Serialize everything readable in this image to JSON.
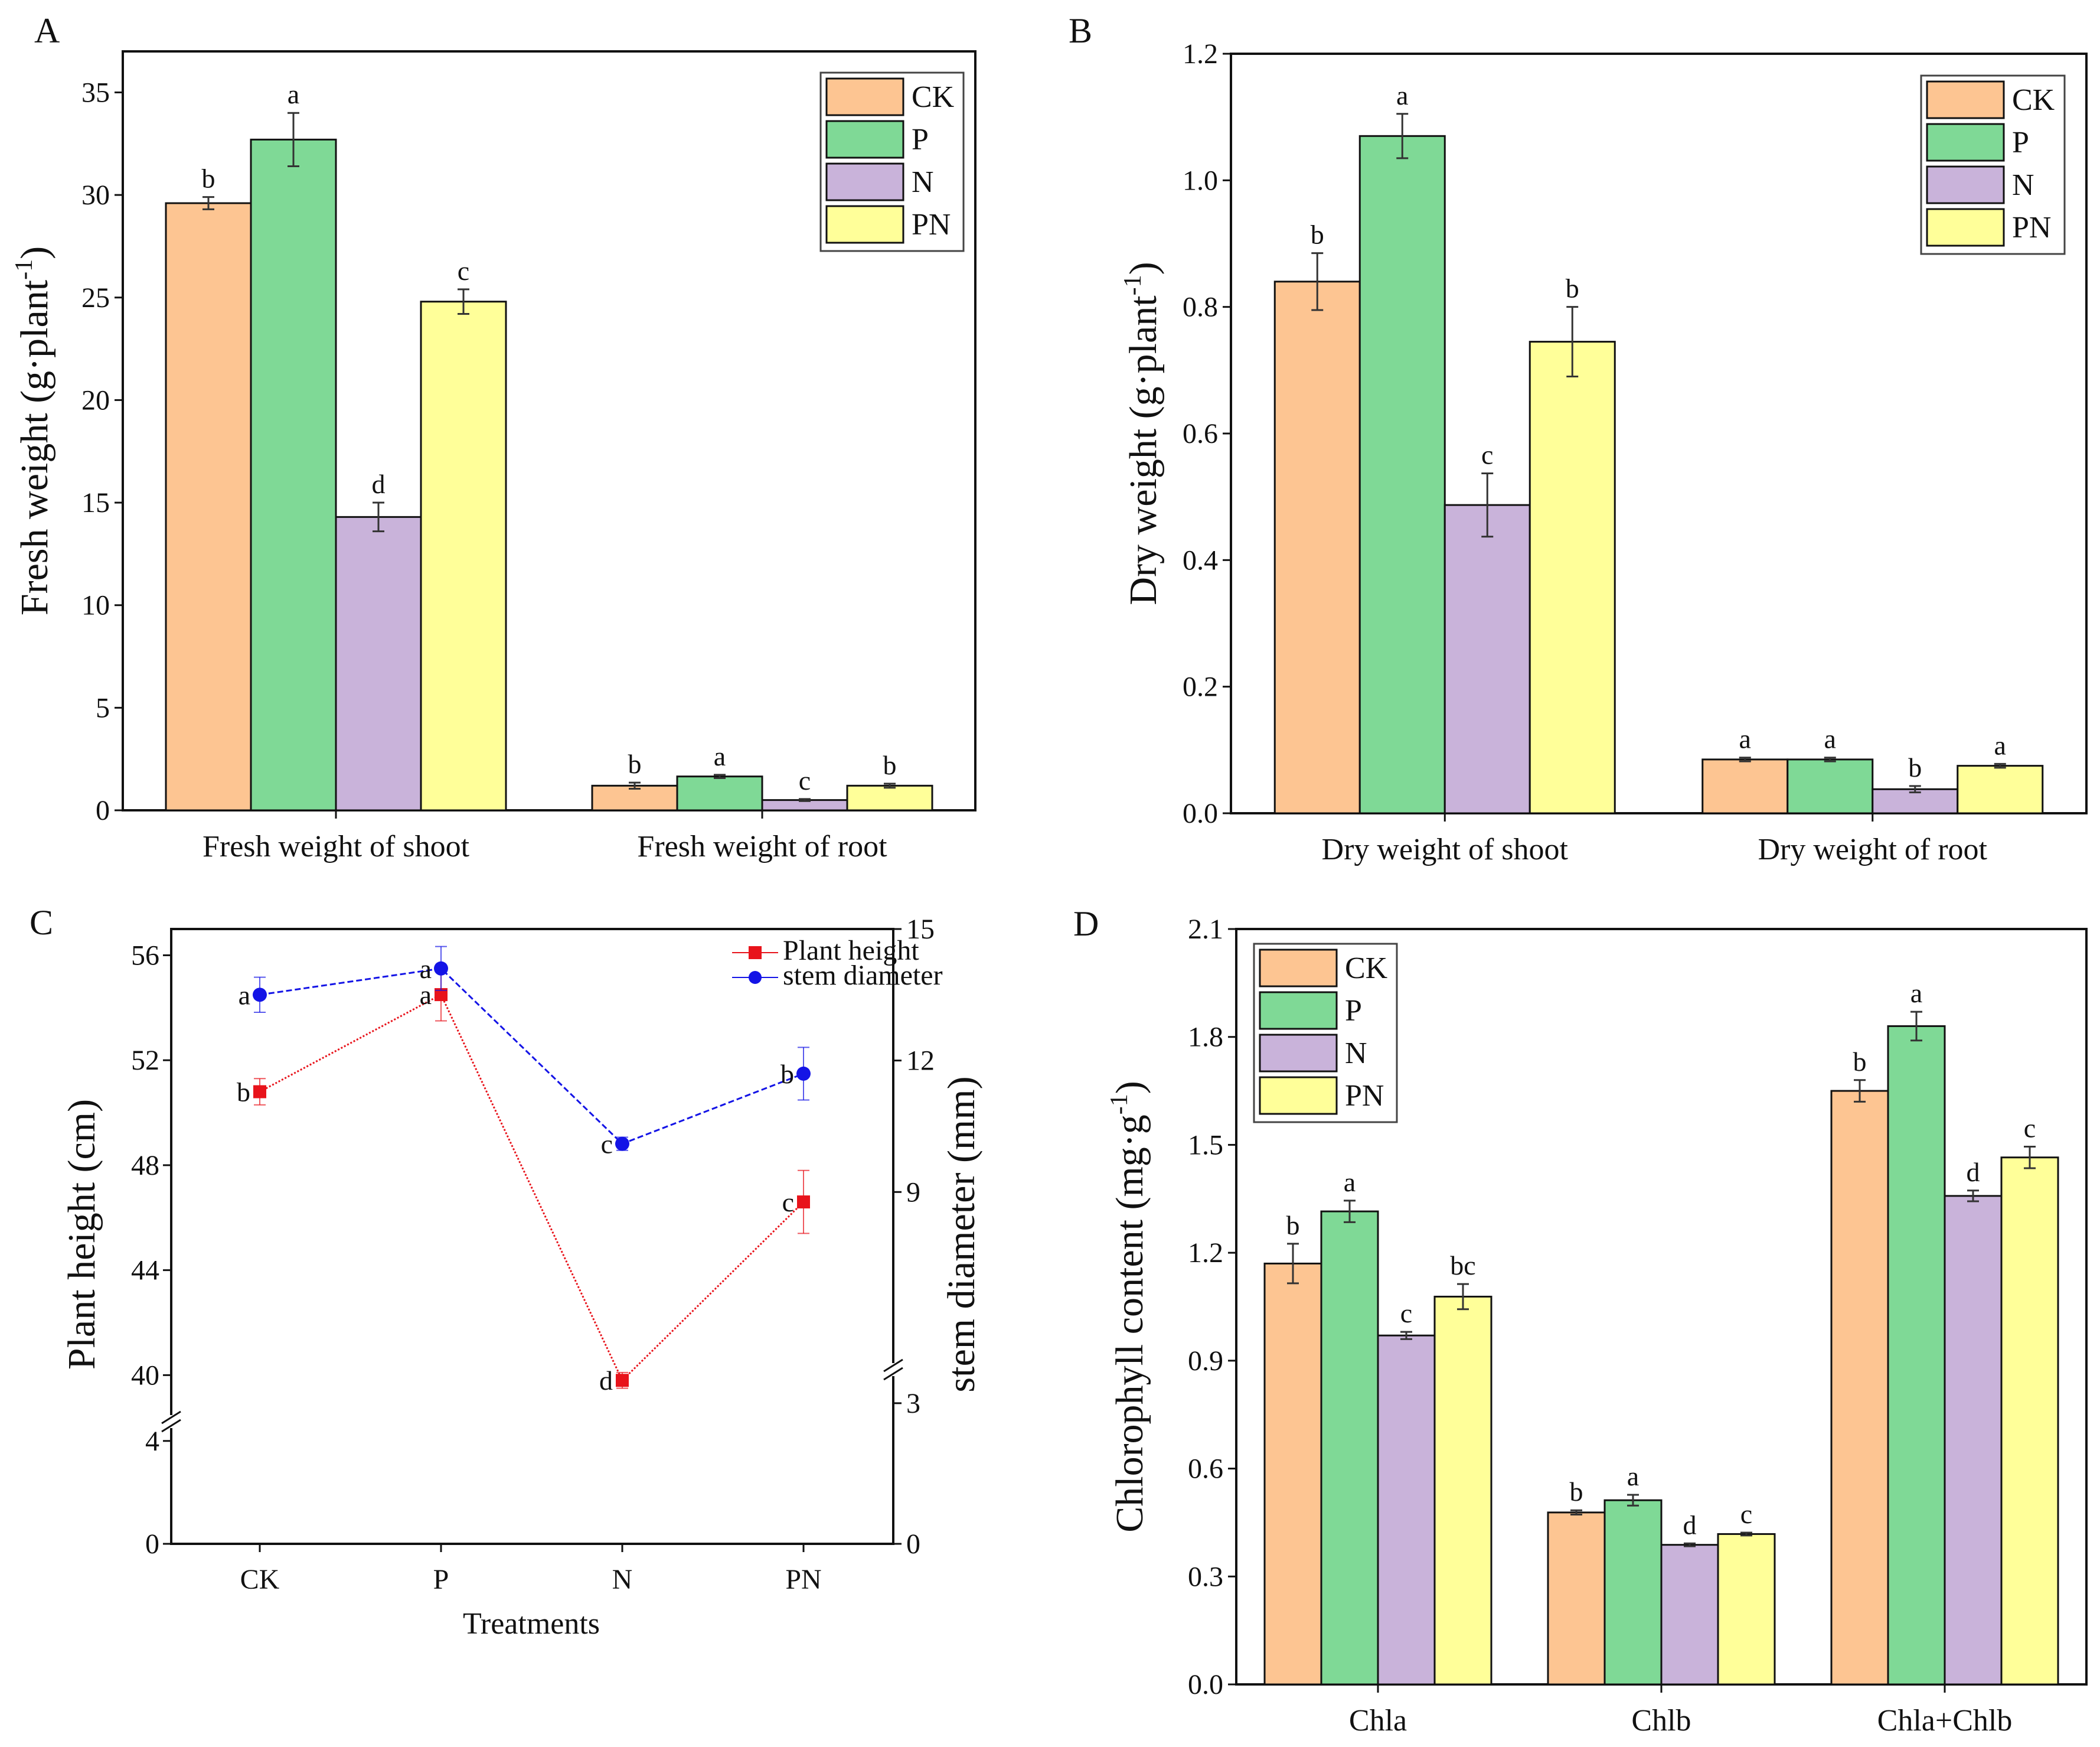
{
  "colors": {
    "CK": "#fdc592",
    "P": "#7fd996",
    "N": "#c9b3da",
    "PN": "#ffff99",
    "plant_height": "#e8131b",
    "stem_diameter": "#1414e6"
  },
  "chart_data": [
    {
      "panel": "A",
      "type": "bar",
      "ylabel": "Fresh weight (g·plant-1)",
      "ylim": [
        0,
        37
      ],
      "yticks": [
        0,
        5,
        10,
        15,
        20,
        25,
        30,
        35
      ],
      "categories": [
        "Fresh weight of shoot",
        "Fresh weight of root"
      ],
      "legend": {
        "position": "top-right",
        "entries": [
          "CK",
          "P",
          "N",
          "PN"
        ]
      },
      "series": [
        {
          "name": "CK",
          "values": [
            29.6,
            1.2
          ],
          "errors": [
            0.3,
            0.15
          ],
          "letters": [
            "b",
            "b"
          ]
        },
        {
          "name": "P",
          "values": [
            32.7,
            1.65
          ],
          "errors": [
            1.3,
            0.08
          ],
          "letters": [
            "a",
            "a"
          ]
        },
        {
          "name": "N",
          "values": [
            14.3,
            0.5
          ],
          "errors": [
            0.7,
            0.05
          ],
          "letters": [
            "d",
            "c"
          ]
        },
        {
          "name": "PN",
          "values": [
            24.8,
            1.2
          ],
          "errors": [
            0.6,
            0.1
          ],
          "letters": [
            "c",
            "b"
          ]
        }
      ]
    },
    {
      "panel": "B",
      "type": "bar",
      "ylabel": "Dry weight (g·plant-1)",
      "ylim": [
        0,
        1.2
      ],
      "yticks": [
        0.0,
        0.2,
        0.4,
        0.6,
        0.8,
        1.0,
        1.2
      ],
      "tick_decimals": 1,
      "categories": [
        "Dry weight of shoot",
        "Dry weight of root"
      ],
      "legend": {
        "position": "top-right",
        "entries": [
          "CK",
          "P",
          "N",
          "PN"
        ]
      },
      "series": [
        {
          "name": "CK",
          "values": [
            0.84,
            0.085
          ],
          "errors": [
            0.045,
            0.003
          ],
          "letters": [
            "b",
            "a"
          ]
        },
        {
          "name": "P",
          "values": [
            1.07,
            0.085
          ],
          "errors": [
            0.035,
            0.003
          ],
          "letters": [
            "a",
            "a"
          ]
        },
        {
          "name": "N",
          "values": [
            0.487,
            0.038
          ],
          "errors": [
            0.05,
            0.005
          ],
          "letters": [
            "c",
            "b"
          ]
        },
        {
          "name": "PN",
          "values": [
            0.745,
            0.075
          ],
          "errors": [
            0.055,
            0.003
          ],
          "letters": [
            "b",
            "a"
          ]
        }
      ]
    },
    {
      "panel": "C",
      "type": "line",
      "xlabel": "Treatments",
      "ylabel": "Plant height (cm)",
      "y2label": "stem diameter (mm)",
      "categories": [
        "CK",
        "P",
        "N",
        "PN"
      ],
      "left_axis": {
        "lower_ticks": [
          0,
          4
        ],
        "lower_range": [
          0,
          4.5
        ],
        "upper_ticks": [
          40,
          44,
          48,
          52,
          56
        ],
        "upper_range": [
          38.5,
          57
        ]
      },
      "right_axis": {
        "lower_ticks": [
          0,
          3
        ],
        "lower_range": [
          0,
          3.2
        ],
        "upper_ticks": [
          9,
          12,
          15
        ],
        "upper_range": [
          4.8,
          15
        ]
      },
      "legend": {
        "position": "top-right",
        "entries": [
          "Plant height",
          "stem diameter"
        ]
      },
      "series": [
        {
          "name": "Plant height",
          "axis": "left",
          "values": [
            50.8,
            54.5,
            39.8,
            46.6
          ],
          "errors": [
            0.5,
            1.0,
            0.3,
            1.2
          ],
          "letters": [
            "b",
            "a",
            "d",
            "c"
          ]
        },
        {
          "name": "stem diameter",
          "axis": "right",
          "values": [
            13.5,
            14.1,
            10.1,
            11.7
          ],
          "errors": [
            0.4,
            0.5,
            0.15,
            0.6
          ],
          "letters": [
            "a",
            "a",
            "c",
            "b"
          ]
        }
      ]
    },
    {
      "panel": "D",
      "type": "bar",
      "ylabel": "Chlorophyll content (mg·g-1)",
      "ylim": [
        0,
        2.1
      ],
      "yticks": [
        0.0,
        0.3,
        0.6,
        0.9,
        1.2,
        1.5,
        1.8,
        2.1
      ],
      "tick_decimals": 1,
      "categories": [
        "Chla",
        "Chlb",
        "Chla+Chlb"
      ],
      "legend": {
        "position": "top-left",
        "entries": [
          "CK",
          "P",
          "N",
          "PN"
        ]
      },
      "series": [
        {
          "name": "CK",
          "values": [
            1.17,
            0.478,
            1.65
          ],
          "errors": [
            0.055,
            0.006,
            0.03
          ],
          "letters": [
            "b",
            "b",
            "b"
          ]
        },
        {
          "name": "P",
          "values": [
            1.315,
            0.512,
            1.83
          ],
          "errors": [
            0.03,
            0.015,
            0.04
          ],
          "letters": [
            "a",
            "a",
            "a"
          ]
        },
        {
          "name": "N",
          "values": [
            0.97,
            0.388,
            1.358
          ],
          "errors": [
            0.01,
            0.004,
            0.015
          ],
          "letters": [
            "c",
            "d",
            "d"
          ]
        },
        {
          "name": "PN",
          "values": [
            1.078,
            0.418,
            1.465
          ],
          "errors": [
            0.035,
            0.004,
            0.03
          ],
          "letters": [
            "bc",
            "c",
            "c"
          ]
        }
      ]
    }
  ]
}
